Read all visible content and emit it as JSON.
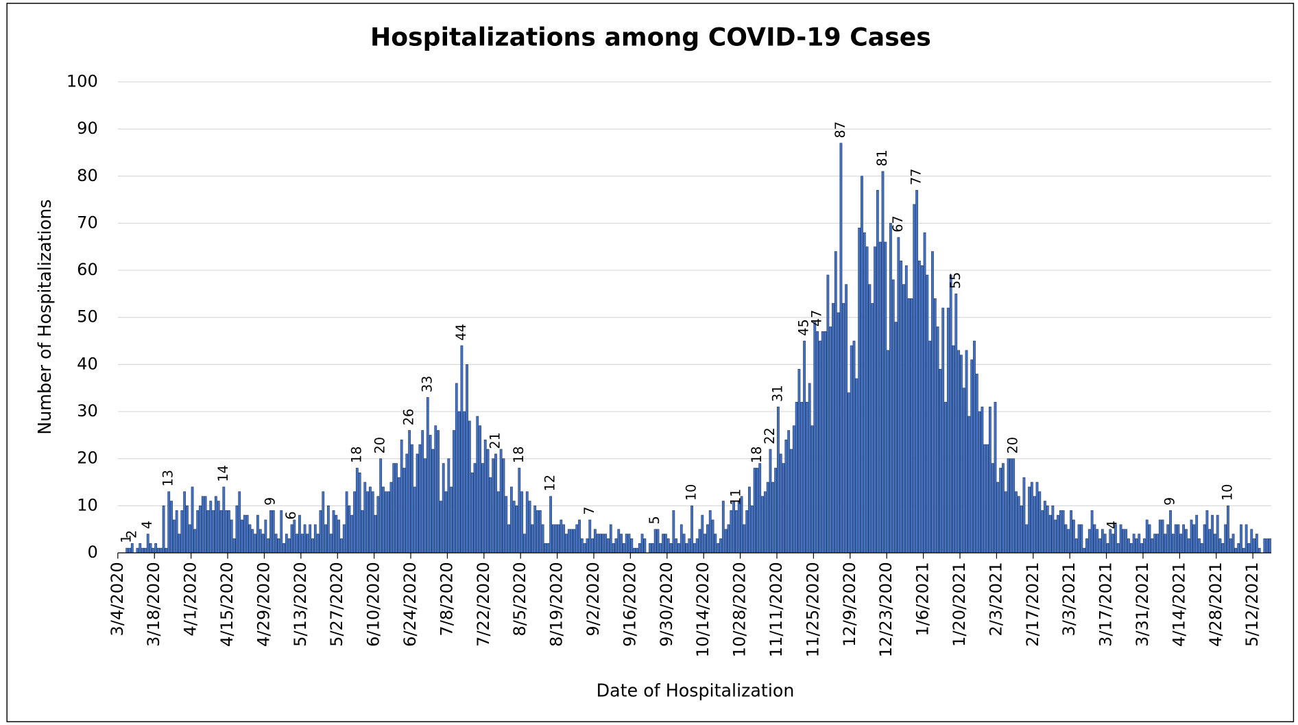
{
  "chart_data": {
    "type": "bar",
    "title": "Hospitalizations among COVID-19 Cases",
    "x_label": "Date of Hospitalization",
    "y_label": "Number of Hospitalizations",
    "color": "#4472c4",
    "edge_color": "#203864",
    "grid": true,
    "ylim": [
      0,
      100
    ],
    "yticks": [
      0,
      10,
      20,
      30,
      40,
      50,
      60,
      70,
      80,
      90,
      100
    ],
    "categories": [
      "3/4/2020",
      null,
      null,
      null,
      null,
      null,
      null,
      null,
      null,
      null,
      null,
      null,
      null,
      null,
      "3/18/2020",
      null,
      null,
      null,
      null,
      null,
      null,
      null,
      null,
      null,
      null,
      null,
      null,
      null,
      "4/1/2020",
      null,
      null,
      null,
      null,
      null,
      null,
      null,
      null,
      null,
      null,
      null,
      null,
      null,
      "4/15/2020",
      null,
      null,
      null,
      null,
      null,
      null,
      null,
      null,
      null,
      null,
      null,
      null,
      null,
      "4/29/2020",
      null,
      null,
      null,
      null,
      null,
      null,
      null,
      null,
      null,
      null,
      null,
      null,
      null,
      "5/13/2020",
      null,
      null,
      null,
      null,
      null,
      null,
      null,
      null,
      null,
      null,
      null,
      null,
      null,
      "5/27/2020",
      null,
      null,
      null,
      null,
      null,
      null,
      null,
      null,
      null,
      null,
      null,
      null,
      null,
      "6/10/2020",
      null,
      null,
      null,
      null,
      null,
      null,
      null,
      null,
      null,
      null,
      null,
      null,
      null,
      "6/24/2020",
      null,
      null,
      null,
      null,
      null,
      null,
      null,
      null,
      null,
      null,
      null,
      null,
      null,
      "7/8/2020",
      null,
      null,
      null,
      null,
      null,
      null,
      null,
      null,
      null,
      null,
      null,
      null,
      null,
      "7/22/2020",
      null,
      null,
      null,
      null,
      null,
      null,
      null,
      null,
      null,
      null,
      null,
      null,
      null,
      "8/5/2020",
      null,
      null,
      null,
      null,
      null,
      null,
      null,
      null,
      null,
      null,
      null,
      null,
      null,
      "8/19/2020",
      null,
      null,
      null,
      null,
      null,
      null,
      null,
      null,
      null,
      null,
      null,
      null,
      null,
      "9/2/2020",
      null,
      null,
      null,
      null,
      null,
      null,
      null,
      null,
      null,
      null,
      null,
      null,
      null,
      "9/16/2020",
      null,
      null,
      null,
      null,
      null,
      null,
      null,
      null,
      null,
      null,
      null,
      null,
      null,
      "9/30/2020",
      null,
      null,
      null,
      null,
      null,
      null,
      null,
      null,
      null,
      null,
      null,
      null,
      null,
      "10/14/2020",
      null,
      null,
      null,
      null,
      null,
      null,
      null,
      null,
      null,
      null,
      null,
      null,
      null,
      "10/28/2020",
      null,
      null,
      null,
      null,
      null,
      null,
      null,
      null,
      null,
      null,
      null,
      null,
      null,
      "11/11/2020",
      null,
      null,
      null,
      null,
      null,
      null,
      null,
      null,
      null,
      null,
      null,
      null,
      null,
      "11/25/2020",
      null,
      null,
      null,
      null,
      null,
      null,
      null,
      null,
      null,
      null,
      null,
      null,
      null,
      "12/9/2020",
      null,
      null,
      null,
      null,
      null,
      null,
      null,
      null,
      null,
      null,
      null,
      null,
      null,
      "12/23/2020",
      null,
      null,
      null,
      null,
      null,
      null,
      null,
      null,
      null,
      null,
      null,
      null,
      null,
      "1/6/2021",
      null,
      null,
      null,
      null,
      null,
      null,
      null,
      null,
      null,
      null,
      null,
      null,
      null,
      "1/20/2021",
      null,
      null,
      null,
      null,
      null,
      null,
      null,
      null,
      null,
      null,
      null,
      null,
      null,
      "2/3/2021",
      null,
      null,
      null,
      null,
      null,
      null,
      null,
      null,
      null,
      null,
      null,
      null,
      null,
      "2/17/2021",
      null,
      null,
      null,
      null,
      null,
      null,
      null,
      null,
      null,
      null,
      null,
      null,
      null,
      "3/3/2021",
      null,
      null,
      null,
      null,
      null,
      null,
      null,
      null,
      null,
      null,
      null,
      null,
      null,
      "3/17/2021",
      null,
      null,
      null,
      null,
      null,
      null,
      null,
      null,
      null,
      null,
      null,
      null,
      null,
      "3/31/2021",
      null,
      null,
      null,
      null,
      null,
      null,
      null,
      null,
      null,
      null,
      null,
      null,
      null,
      "4/14/2021",
      null,
      null,
      null,
      null,
      null,
      null,
      null,
      null,
      null,
      null,
      null,
      null,
      null,
      "4/28/2021",
      null,
      null,
      null,
      null,
      null,
      null,
      null,
      null,
      null,
      null,
      null,
      null,
      null,
      "5/12/2021",
      null,
      null,
      null,
      null,
      null,
      null
    ],
    "values": [
      0,
      0,
      0,
      1,
      1,
      2,
      0,
      1,
      2,
      1,
      1,
      4,
      2,
      1,
      2,
      1,
      1,
      10,
      1,
      13,
      11,
      7,
      9,
      4,
      9,
      13,
      10,
      6,
      14,
      5,
      9,
      10,
      12,
      12,
      9,
      11,
      9,
      12,
      11,
      9,
      14,
      9,
      9,
      7,
      3,
      10,
      13,
      7,
      8,
      8,
      6,
      5,
      4,
      8,
      5,
      4,
      7,
      3,
      9,
      9,
      4,
      3,
      9,
      2,
      4,
      3,
      6,
      7,
      4,
      8,
      4,
      6,
      4,
      6,
      3,
      6,
      4,
      9,
      13,
      6,
      10,
      4,
      9,
      8,
      7,
      3,
      6,
      13,
      10,
      8,
      13,
      18,
      17,
      9,
      15,
      13,
      14,
      13,
      8,
      12,
      20,
      14,
      13,
      13,
      15,
      19,
      19,
      16,
      24,
      18,
      21,
      26,
      23,
      14,
      21,
      23,
      26,
      20,
      33,
      25,
      22,
      27,
      26,
      11,
      19,
      13,
      20,
      14,
      26,
      36,
      30,
      44,
      30,
      40,
      28,
      17,
      19,
      29,
      27,
      19,
      24,
      22,
      16,
      20,
      21,
      13,
      22,
      20,
      12,
      6,
      14,
      11,
      10,
      18,
      13,
      4,
      13,
      11,
      6,
      10,
      9,
      9,
      6,
      2,
      2,
      12,
      6,
      6,
      6,
      7,
      6,
      4,
      5,
      5,
      5,
      6,
      7,
      3,
      2,
      3,
      7,
      3,
      5,
      4,
      4,
      4,
      4,
      3,
      6,
      2,
      3,
      5,
      4,
      2,
      4,
      4,
      3,
      1,
      1,
      2,
      4,
      3,
      0,
      2,
      2,
      5,
      5,
      2,
      4,
      4,
      3,
      2,
      9,
      3,
      2,
      6,
      4,
      2,
      3,
      10,
      2,
      3,
      5,
      8,
      4,
      6,
      9,
      7,
      4,
      2,
      3,
      11,
      5,
      6,
      9,
      11,
      9,
      11,
      12,
      6,
      9,
      14,
      10,
      18,
      18,
      19,
      12,
      13,
      15,
      22,
      15,
      18,
      31,
      21,
      19,
      24,
      26,
      22,
      27,
      32,
      39,
      32,
      45,
      32,
      36,
      27,
      49,
      47,
      45,
      47,
      47,
      59,
      48,
      53,
      64,
      51,
      87,
      53,
      57,
      34,
      44,
      45,
      37,
      69,
      80,
      68,
      65,
      57,
      53,
      65,
      77,
      66,
      81,
      66,
      43,
      70,
      58,
      49,
      67,
      62,
      57,
      61,
      54,
      54,
      74,
      77,
      62,
      61,
      68,
      59,
      45,
      64,
      54,
      48,
      39,
      52,
      32,
      52,
      59,
      44,
      55,
      43,
      42,
      35,
      43,
      29,
      41,
      45,
      38,
      30,
      31,
      23,
      23,
      31,
      19,
      32,
      15,
      18,
      19,
      13,
      20,
      20,
      20,
      13,
      12,
      10,
      16,
      6,
      14,
      15,
      12,
      15,
      13,
      9,
      11,
      10,
      8,
      10,
      7,
      8,
      9,
      9,
      6,
      5,
      9,
      7,
      3,
      6,
      6,
      1,
      3,
      5,
      9,
      6,
      5,
      3,
      5,
      4,
      2,
      5,
      4,
      6,
      2,
      6,
      5,
      5,
      3,
      2,
      4,
      3,
      4,
      2,
      3,
      7,
      6,
      3,
      4,
      4,
      7,
      7,
      4,
      6,
      9,
      4,
      6,
      6,
      4,
      6,
      5,
      3,
      7,
      6,
      8,
      3,
      2,
      6,
      9,
      5,
      8,
      4,
      8,
      3,
      2,
      6,
      10,
      3,
      4,
      1,
      2,
      6,
      1,
      6,
      2,
      5,
      3,
      4,
      1,
      0,
      3,
      3,
      3
    ],
    "value_labels": [
      null,
      null,
      null,
      1,
      null,
      2,
      null,
      null,
      null,
      null,
      null,
      4,
      null,
      null,
      null,
      null,
      null,
      null,
      null,
      13,
      null,
      null,
      null,
      null,
      null,
      null,
      null,
      null,
      null,
      null,
      null,
      null,
      null,
      null,
      null,
      null,
      null,
      null,
      null,
      null,
      14,
      null,
      null,
      null,
      null,
      null,
      null,
      null,
      null,
      null,
      null,
      null,
      null,
      null,
      null,
      null,
      null,
      null,
      9,
      null,
      null,
      null,
      null,
      null,
      null,
      null,
      6,
      null,
      null,
      null,
      null,
      null,
      null,
      null,
      null,
      null,
      null,
      null,
      null,
      null,
      null,
      null,
      null,
      null,
      null,
      null,
      null,
      null,
      null,
      null,
      null,
      18,
      null,
      null,
      null,
      null,
      null,
      null,
      null,
      null,
      20,
      null,
      null,
      null,
      null,
      null,
      null,
      null,
      null,
      null,
      null,
      26,
      null,
      null,
      null,
      null,
      null,
      null,
      33,
      null,
      null,
      null,
      null,
      null,
      null,
      null,
      null,
      null,
      null,
      null,
      null,
      44,
      null,
      null,
      null,
      null,
      null,
      null,
      null,
      null,
      null,
      null,
      null,
      null,
      21,
      null,
      null,
      null,
      null,
      null,
      null,
      null,
      null,
      18,
      null,
      null,
      null,
      null,
      null,
      null,
      null,
      null,
      null,
      null,
      null,
      12,
      null,
      null,
      null,
      null,
      null,
      null,
      null,
      null,
      null,
      null,
      null,
      null,
      null,
      null,
      7,
      null,
      null,
      null,
      null,
      null,
      null,
      null,
      null,
      null,
      null,
      null,
      null,
      null,
      null,
      null,
      null,
      null,
      null,
      null,
      null,
      null,
      null,
      null,
      null,
      5,
      null,
      null,
      null,
      null,
      null,
      null,
      null,
      null,
      null,
      null,
      null,
      null,
      null,
      10,
      null,
      null,
      null,
      null,
      null,
      null,
      null,
      null,
      null,
      null,
      null,
      null,
      null,
      null,
      null,
      null,
      11,
      null,
      null,
      null,
      null,
      null,
      null,
      null,
      18,
      null,
      null,
      null,
      null,
      22,
      null,
      null,
      31,
      null,
      null,
      null,
      null,
      null,
      null,
      null,
      null,
      null,
      45,
      null,
      null,
      null,
      null,
      47,
      null,
      null,
      null,
      null,
      null,
      null,
      null,
      null,
      87,
      null,
      null,
      null,
      null,
      null,
      null,
      null,
      null,
      null,
      null,
      null,
      null,
      null,
      null,
      null,
      81,
      null,
      null,
      null,
      null,
      null,
      67,
      null,
      null,
      null,
      null,
      null,
      null,
      77,
      null,
      null,
      null,
      null,
      null,
      null,
      null,
      null,
      null,
      null,
      null,
      null,
      null,
      null,
      55,
      null,
      null,
      null,
      null,
      null,
      null,
      null,
      null,
      null,
      null,
      null,
      null,
      null,
      null,
      null,
      null,
      null,
      null,
      null,
      null,
      null,
      20,
      null,
      null,
      null,
      null,
      null,
      null,
      null,
      null,
      null,
      null,
      null,
      null,
      null,
      null,
      null,
      null,
      null,
      null,
      null,
      null,
      null,
      null,
      null,
      null,
      null,
      null,
      null,
      null,
      null,
      null,
      null,
      null,
      null,
      null,
      null,
      null,
      null,
      4,
      null,
      null,
      null,
      null,
      null,
      null,
      null,
      null,
      null,
      null,
      null,
      null,
      null,
      null,
      null,
      null,
      null,
      null,
      null,
      null,
      null,
      9,
      null,
      null,
      null,
      null,
      null,
      null,
      null,
      null,
      null,
      null,
      null,
      null,
      null,
      null,
      null,
      null,
      null,
      null,
      null,
      null,
      null,
      10,
      null,
      null,
      null,
      null,
      null,
      null,
      null,
      null,
      null,
      null,
      null,
      null,
      null,
      null,
      null,
      null
    ]
  }
}
